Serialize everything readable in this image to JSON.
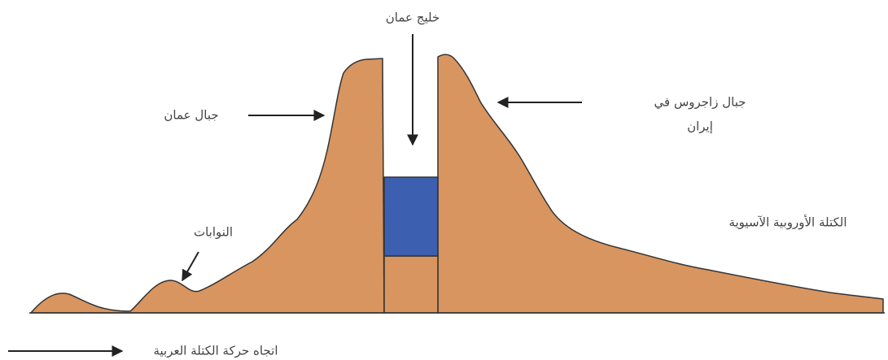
{
  "labels": {
    "gulf": "خليج عمان",
    "oman_mountains": "جبال عمان",
    "zagros": [
      "جبال زاجروس في",
      "إيران"
    ],
    "nappes": "النوابات",
    "eurasian_plate": "الكتلة الأوروبية الآسيوية",
    "movement": "اتجاه حركة الكتلة العربية"
  }
}
